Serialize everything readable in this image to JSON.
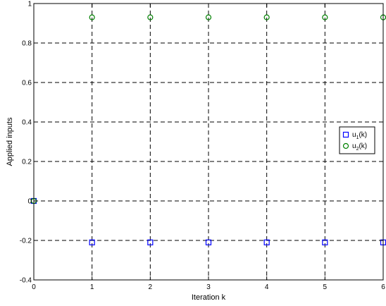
{
  "chart_data": {
    "type": "scatter",
    "title": "",
    "xlabel": "Iteration k",
    "ylabel": "Applied inputs",
    "xlim": [
      0,
      6
    ],
    "ylim": [
      -0.4,
      1
    ],
    "xticks": [
      "0",
      "1",
      "2",
      "3",
      "4",
      "5",
      "6"
    ],
    "yticks": [
      "-0.4",
      "-0.2",
      "0",
      "0.2",
      "0.4",
      "0.6",
      "0.8",
      "1"
    ],
    "grid": true,
    "legend_position": "right",
    "series": [
      {
        "name": "u1(k)",
        "label_main": "u",
        "label_sub": "1",
        "label_tail": "(k)",
        "marker": "square",
        "color": "#0000ff",
        "x": [
          0,
          1,
          2,
          3,
          4,
          5,
          6
        ],
        "y": [
          0,
          -0.21,
          -0.21,
          -0.21,
          -0.21,
          -0.21,
          -0.21
        ]
      },
      {
        "name": "u2(k)",
        "label_main": "u",
        "label_sub": "2",
        "label_tail": "(k)",
        "marker": "circle",
        "color": "#008000",
        "x": [
          0,
          1,
          2,
          3,
          4,
          5,
          6
        ],
        "y": [
          0,
          0.93,
          0.93,
          0.93,
          0.93,
          0.93,
          0.93
        ]
      }
    ]
  }
}
